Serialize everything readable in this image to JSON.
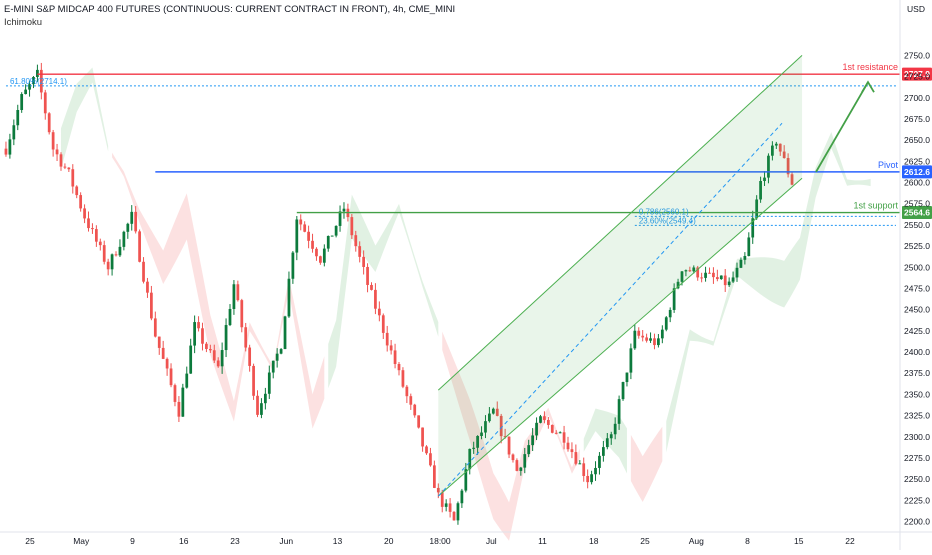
{
  "header": {
    "title": "E-MINI S&P MIDCAP 400 FUTURES (CONTINUOUS: CURRENT CONTRACT IN FRONT), 4h, CME_MINI",
    "indicator": "Ichimoku"
  },
  "colors": {
    "up": "#26a69a",
    "up_dark": "#0c7a3c",
    "down": "#ef5350",
    "resistance": "#f23645",
    "pivot": "#2962ff",
    "support": "#43a047",
    "fib": "#2196f3",
    "cloud_bull": "#d7ecd9",
    "cloud_bear": "#fbd7d7",
    "channel": "#4caf50"
  },
  "chart_data": {
    "type": "candlestick",
    "title": "E-MINI S&P MIDCAP 400 FUTURES (CONTINUOUS: CURRENT CONTRACT IN FRONT), 4h, CME_MINI",
    "currency": "USD",
    "ylim": [
      2190,
      2780
    ],
    "y_ticks": [
      2200.0,
      2225.0,
      2250.0,
      2275.0,
      2300.0,
      2325.0,
      2350.0,
      2375.0,
      2400.0,
      2425.0,
      2450.0,
      2475.0,
      2500.0,
      2525.0,
      2550.0,
      2575.0,
      2600.0,
      2625.0,
      2650.0,
      2675.0,
      2700.0,
      2725.0,
      2750.0
    ],
    "x_ticks": [
      "25",
      "May",
      "9",
      "16",
      "23",
      "Jun",
      "13",
      "20",
      "18:00",
      "Jul",
      "11",
      "18",
      "25",
      "Aug",
      "8",
      "15",
      "22"
    ],
    "levels": [
      {
        "name": "1st resistance",
        "value": 2727.9,
        "label": "2727.9"
      },
      {
        "name": "Pivot",
        "value": 2612.6,
        "label": "2612.6"
      },
      {
        "name": "1st support",
        "value": 2564.6,
        "label": "2564.6"
      }
    ],
    "fib_levels": [
      {
        "label": "61.80%(2714.1)",
        "value": 2714.1
      },
      {
        "label": "0.786(2560.1)",
        "value": 2560.1
      },
      {
        "label": "23.60%(2549.4)",
        "value": 2549.4
      }
    ],
    "path_approx": [
      [
        0,
        2640
      ],
      [
        4,
        2700
      ],
      [
        8,
        2727
      ],
      [
        12,
        2640
      ],
      [
        16,
        2610
      ],
      [
        20,
        2560
      ],
      [
        26,
        2500
      ],
      [
        32,
        2560
      ],
      [
        38,
        2420
      ],
      [
        44,
        2330
      ],
      [
        48,
        2430
      ],
      [
        54,
        2380
      ],
      [
        58,
        2480
      ],
      [
        64,
        2330
      ],
      [
        70,
        2410
      ],
      [
        74,
        2560
      ],
      [
        80,
        2510
      ],
      [
        86,
        2570
      ],
      [
        92,
        2480
      ],
      [
        98,
        2400
      ],
      [
        104,
        2320
      ],
      [
        110,
        2230
      ],
      [
        114,
        2200
      ],
      [
        118,
        2280
      ],
      [
        124,
        2330
      ],
      [
        130,
        2260
      ],
      [
        136,
        2320
      ],
      [
        142,
        2300
      ],
      [
        148,
        2250
      ],
      [
        154,
        2300
      ],
      [
        160,
        2420
      ],
      [
        166,
        2410
      ],
      [
        172,
        2500
      ],
      [
        178,
        2490
      ],
      [
        184,
        2480
      ],
      [
        188,
        2510
      ],
      [
        192,
        2600
      ],
      [
        196,
        2650
      ],
      [
        200,
        2600
      ]
    ],
    "legend": "none",
    "grid": false
  }
}
